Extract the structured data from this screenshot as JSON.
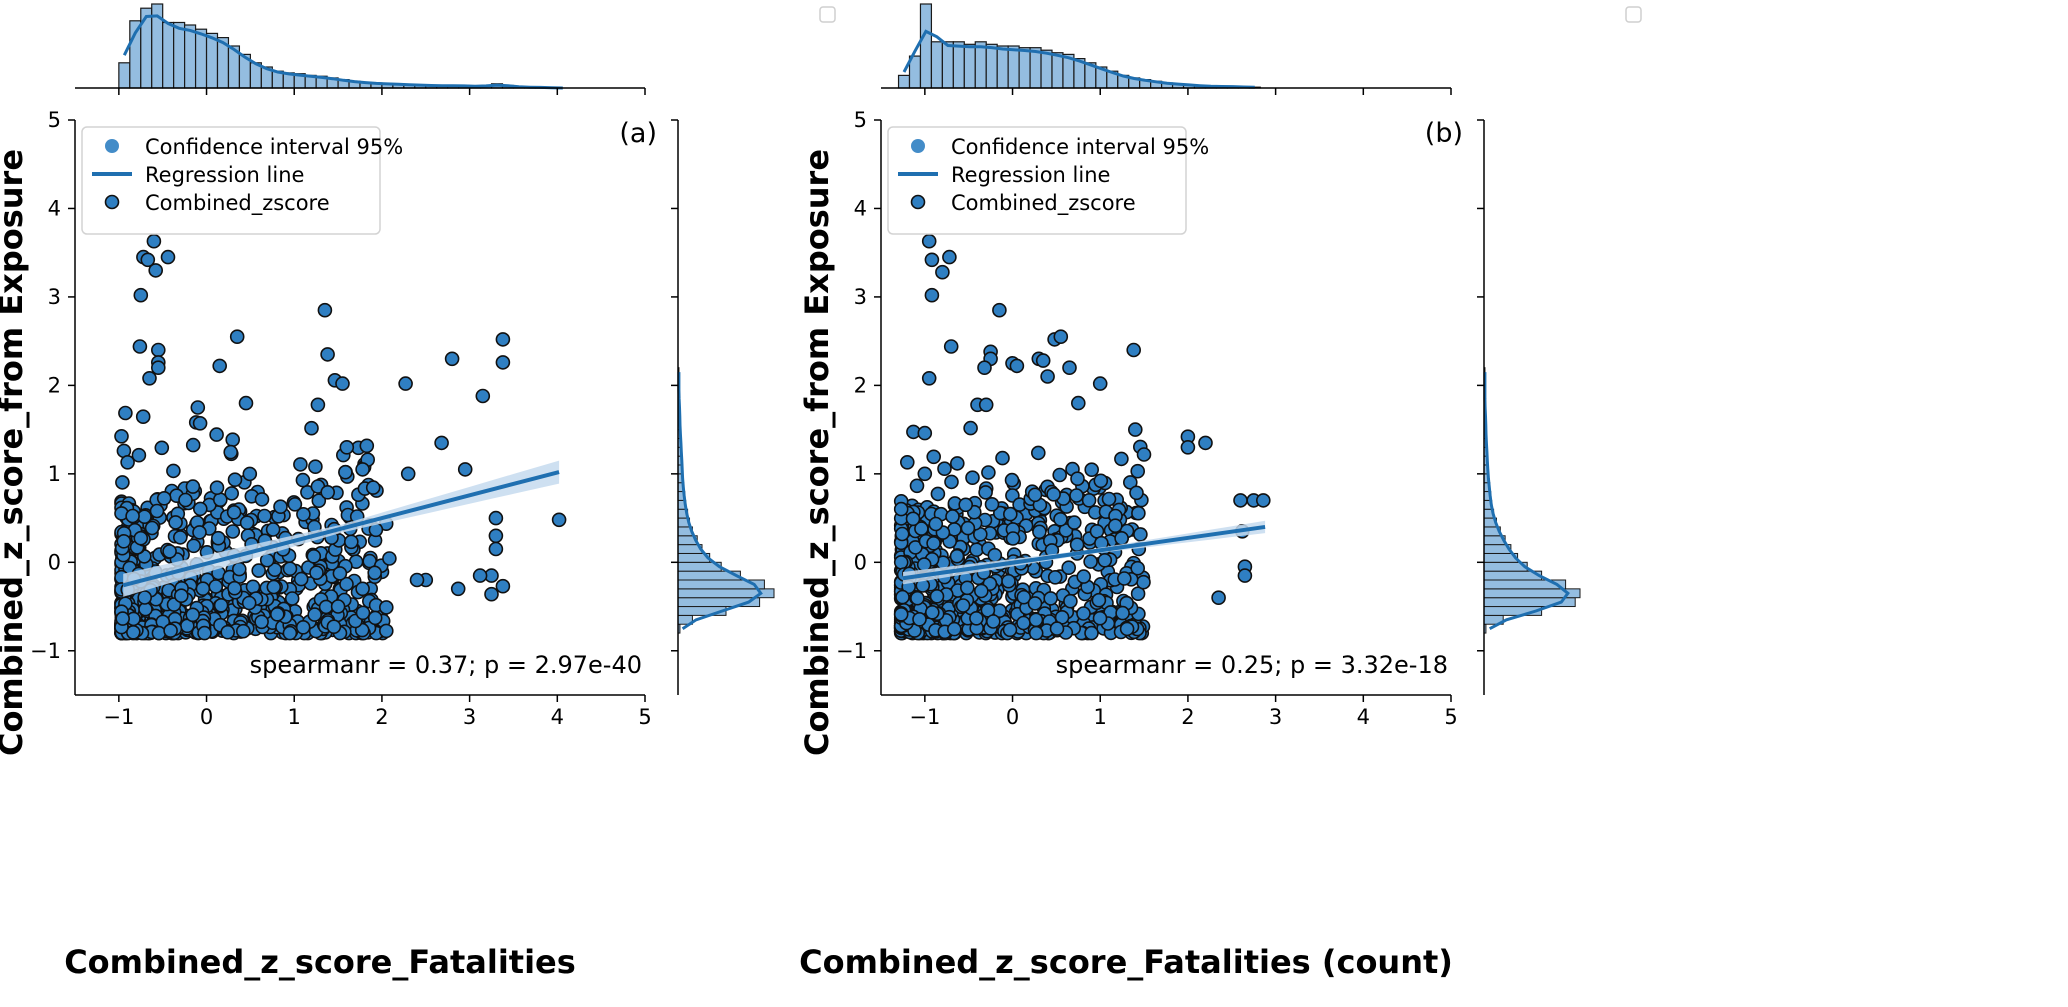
{
  "chart_data": [
    {
      "type": "scatter",
      "panel_label": "(a)",
      "xlabel": "Combined_z_score_Fatalities",
      "ylabel": "Combined_z_score_from Exposure",
      "xlim": [
        -1.5,
        5
      ],
      "ylim": [
        -1.5,
        5
      ],
      "xticks": [
        -1,
        0,
        1,
        2,
        3,
        4,
        5
      ],
      "yticks": [
        -1,
        0,
        1,
        2,
        3,
        4,
        5
      ],
      "tick_labels_x": [
        "−1",
        "0",
        "1",
        "2",
        "3",
        "4",
        "5"
      ],
      "tick_labels_y": [
        "−1",
        "0",
        "1",
        "2",
        "3",
        "4",
        "5"
      ],
      "legend": {
        "position": "top-left",
        "entries": [
          "Confidence interval 95%",
          "Regression line",
          "Combined_zscore"
        ]
      },
      "annotation": "spearmanr = 0.37; p = 2.97e-40",
      "regression": {
        "x": [
          -0.95,
          4.02
        ],
        "y": [
          -0.26,
          1.02
        ],
        "ci_halfwidth_end": 0.13
      },
      "colors": {
        "marker": "#2f7fc2",
        "line": "#1f6fb0",
        "band": "#c5dbee",
        "hist": "#94bde0"
      },
      "seed": 11,
      "n_points": 800,
      "outliers": [
        [
          -0.6,
          3.63
        ],
        [
          -0.72,
          3.45
        ],
        [
          -0.67,
          3.42
        ],
        [
          -0.58,
          3.3
        ],
        [
          -0.44,
          3.45
        ],
        [
          -0.75,
          3.02
        ],
        [
          1.35,
          2.85
        ],
        [
          0.35,
          2.55
        ],
        [
          3.38,
          2.52
        ],
        [
          -0.55,
          2.4
        ],
        [
          -0.76,
          2.44
        ],
        [
          0.15,
          2.22
        ],
        [
          1.38,
          2.35
        ],
        [
          2.8,
          2.3
        ],
        [
          3.38,
          2.26
        ],
        [
          -0.55,
          2.26
        ],
        [
          -0.55,
          2.2
        ],
        [
          -0.65,
          2.08
        ],
        [
          2.27,
          2.02
        ],
        [
          1.55,
          2.02
        ],
        [
          3.15,
          1.88
        ],
        [
          0.45,
          1.8
        ],
        [
          1.27,
          1.78
        ],
        [
          -0.1,
          1.75
        ],
        [
          2.68,
          1.35
        ],
        [
          1.6,
          1.3
        ],
        [
          2.95,
          1.05
        ],
        [
          2.3,
          1.0
        ],
        [
          1.78,
          1.05
        ],
        [
          4.02,
          0.48
        ],
        [
          3.3,
          0.5
        ],
        [
          3.3,
          0.3
        ],
        [
          3.3,
          0.15
        ],
        [
          3.25,
          -0.15
        ],
        [
          3.25,
          -0.36
        ],
        [
          3.38,
          -0.27
        ],
        [
          3.12,
          -0.15
        ],
        [
          2.87,
          -0.3
        ],
        [
          2.5,
          -0.2
        ],
        [
          2.4,
          -0.2
        ],
        [
          1.5,
          -0.5
        ],
        [
          -0.9,
          1.13
        ]
      ],
      "top_histogram": {
        "bins_start": -1.0,
        "bin_width": 0.125,
        "heights": [
          0.3,
          0.8,
          0.95,
          1.0,
          0.78,
          0.78,
          0.75,
          0.7,
          0.65,
          0.6,
          0.5,
          0.4,
          0.3,
          0.25,
          0.2,
          0.18,
          0.17,
          0.15,
          0.14,
          0.12,
          0.1,
          0.08,
          0.07,
          0.06,
          0.05,
          0.05,
          0.04,
          0.04,
          0.03,
          0.03,
          0.03,
          0.03,
          0.02,
          0.02,
          0.05,
          0.03,
          0.01,
          0.01,
          0.01,
          0.0,
          0.0
        ]
      },
      "right_histogram": {
        "bins_start": -0.8,
        "bin_width": 0.1,
        "heights": [
          0.02,
          0.15,
          0.5,
          0.85,
          1.0,
          0.9,
          0.65,
          0.45,
          0.33,
          0.25,
          0.2,
          0.15,
          0.12,
          0.1,
          0.08,
          0.07,
          0.06,
          0.05,
          0.05,
          0.04,
          0.04,
          0.03,
          0.03,
          0.02,
          0.02,
          0.02,
          0.01,
          0.01,
          0.01,
          0.01
        ]
      }
    },
    {
      "type": "scatter",
      "panel_label": "(b)",
      "xlabel": "Combined_z_score_Fatalities (count)",
      "ylabel": "Combined_z_score_from Exposure",
      "xlim": [
        -1.5,
        5
      ],
      "ylim": [
        -1.5,
        5
      ],
      "xticks": [
        -1,
        0,
        1,
        2,
        3,
        4,
        5
      ],
      "yticks": [
        -1,
        0,
        1,
        2,
        3,
        4,
        5
      ],
      "tick_labels_x": [
        "−1",
        "0",
        "1",
        "2",
        "3",
        "4",
        "5"
      ],
      "tick_labels_y": [
        "−1",
        "0",
        "1",
        "2",
        "3",
        "4",
        "5"
      ],
      "legend": {
        "position": "top-left",
        "entries": [
          "Confidence interval 95%",
          "Regression line",
          "Combined_zscore"
        ]
      },
      "annotation": "spearmanr = 0.25; p = 3.32e-18",
      "regression": {
        "x": [
          -1.25,
          2.88
        ],
        "y": [
          -0.18,
          0.4
        ],
        "ci_halfwidth_end": 0.07
      },
      "colors": {
        "marker": "#2f7fc2",
        "line": "#1f6fb0",
        "band": "#c5dbee",
        "hist": "#94bde0"
      },
      "seed": 29,
      "n_points": 800,
      "outliers": [
        [
          -0.95,
          3.63
        ],
        [
          -0.92,
          3.42
        ],
        [
          -0.8,
          3.28
        ],
        [
          -0.72,
          3.45
        ],
        [
          -0.92,
          3.02
        ],
        [
          -0.15,
          2.85
        ],
        [
          0.48,
          2.52
        ],
        [
          0.55,
          2.55
        ],
        [
          -0.7,
          2.44
        ],
        [
          -0.25,
          2.38
        ],
        [
          -0.25,
          2.3
        ],
        [
          0.0,
          2.25
        ],
        [
          0.3,
          2.3
        ],
        [
          -0.32,
          2.2
        ],
        [
          0.05,
          2.22
        ],
        [
          0.4,
          2.1
        ],
        [
          0.35,
          2.28
        ],
        [
          0.65,
          2.2
        ],
        [
          -0.95,
          2.08
        ],
        [
          1.0,
          2.02
        ],
        [
          -0.4,
          1.78
        ],
        [
          -0.3,
          1.78
        ],
        [
          0.75,
          1.8
        ],
        [
          1.4,
          1.5
        ],
        [
          2.0,
          1.42
        ],
        [
          2.2,
          1.35
        ],
        [
          2.0,
          1.3
        ],
        [
          2.6,
          0.7
        ],
        [
          2.75,
          0.7
        ],
        [
          2.86,
          0.7
        ],
        [
          2.62,
          0.35
        ],
        [
          2.65,
          -0.05
        ],
        [
          2.65,
          -0.15
        ],
        [
          2.35,
          -0.4
        ],
        [
          -1.2,
          1.13
        ],
        [
          -1.0,
          1.0
        ]
      ],
      "top_histogram": {
        "bins_start": -1.3,
        "bin_width": 0.125,
        "heights": [
          0.15,
          0.38,
          1.0,
          0.55,
          0.55,
          0.55,
          0.52,
          0.55,
          0.52,
          0.5,
          0.5,
          0.48,
          0.48,
          0.45,
          0.42,
          0.4,
          0.35,
          0.3,
          0.25,
          0.2,
          0.15,
          0.12,
          0.1,
          0.08,
          0.06,
          0.05,
          0.04,
          0.03,
          0.02,
          0.02,
          0.02,
          0.01,
          0.01
        ]
      },
      "right_histogram": {
        "bins_start": -0.8,
        "bin_width": 0.1,
        "heights": [
          0.02,
          0.2,
          0.6,
          0.95,
          1.0,
          0.85,
          0.6,
          0.45,
          0.35,
          0.28,
          0.22,
          0.17,
          0.13,
          0.1,
          0.08,
          0.07,
          0.06,
          0.05,
          0.04,
          0.04,
          0.03,
          0.03,
          0.02,
          0.02,
          0.02,
          0.01,
          0.01,
          0.01,
          0.01,
          0.01
        ]
      }
    }
  ]
}
